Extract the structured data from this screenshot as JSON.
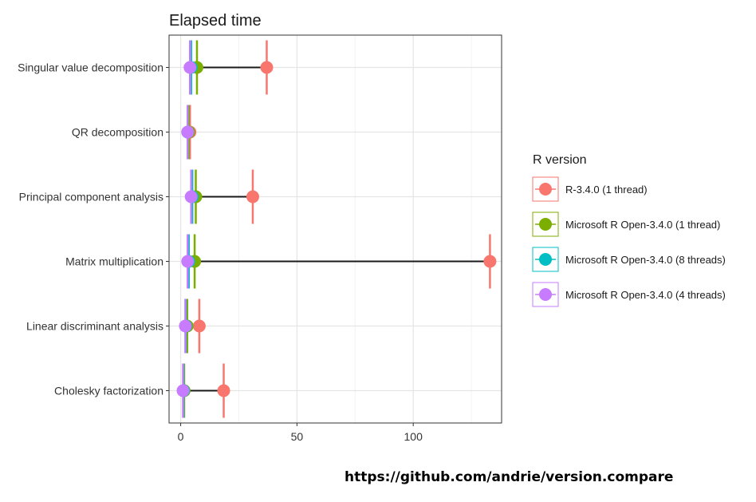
{
  "chart_data": {
    "type": "dot-range",
    "title": "Elapsed time",
    "xlim": [
      -5,
      138
    ],
    "x_ticks": [
      0,
      50,
      100
    ],
    "x_tick_labels": [
      "0",
      "50",
      "100"
    ],
    "grid": true,
    "legend_position": "right",
    "categories": [
      "Singular value decomposition",
      "QR decomposition",
      "Principal component analysis",
      "Matrix multiplication",
      "Linear discriminant analysis",
      "Cholesky factorization"
    ],
    "series": [
      {
        "name": "R-3.4.0 (1 thread)",
        "color": "#F8766D",
        "values": [
          37,
          4,
          31,
          133,
          8,
          18.5
        ]
      },
      {
        "name": "Microsoft R Open-3.4.0 (1 thread)",
        "color": "#7CAE00",
        "values": [
          7,
          3.5,
          6.5,
          6,
          2.8,
          1.5
        ]
      },
      {
        "name": "Microsoft R Open-3.4.0 (8 threads)",
        "color": "#00BFC4",
        "values": [
          4.5,
          3,
          5,
          3.5,
          2.2,
          1.2
        ]
      },
      {
        "name": "Microsoft R Open-3.4.0 (4 threads)",
        "color": "#C77CFF",
        "values": [
          4,
          3,
          4.5,
          3,
          2,
          1
        ]
      }
    ]
  },
  "legend": {
    "title": "R version"
  },
  "footer": {
    "source_url": "https://github.com/andrie/version.compare"
  }
}
